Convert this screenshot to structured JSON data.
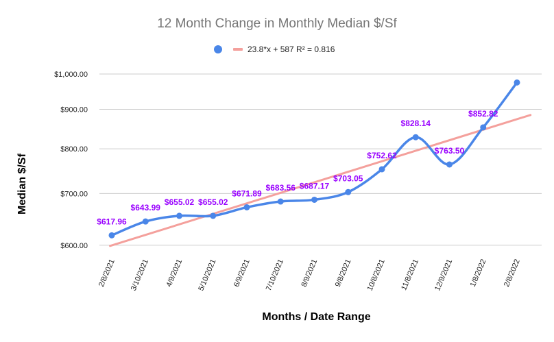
{
  "chart_data": {
    "type": "line",
    "title": "12 Month Change in Monthly Median $/Sf",
    "xlabel": "Months / Date Range",
    "ylabel": "Median $/Sf",
    "scale": "log",
    "ylim": [
      590,
      1000
    ],
    "y_ticks": [
      {
        "value": 600,
        "label": "$600.00"
      },
      {
        "value": 700,
        "label": "$700.00"
      },
      {
        "value": 800,
        "label": "$800.00"
      },
      {
        "value": 900,
        "label": "$900.00"
      },
      {
        "value": 1000,
        "label": "$1,000.00"
      }
    ],
    "categories": [
      "2/8/2021",
      "3/10/2021",
      "4/9/2021",
      "5/10/2021",
      "6/9/2021",
      "7/10/2021",
      "8/9/2021",
      "9/8/2021",
      "10/8/2021",
      "11/8/2021",
      "12/9/2021",
      "1/8/2022",
      "2/8/2022"
    ],
    "values": [
      617.96,
      643.99,
      655.02,
      655.02,
      671.89,
      683.56,
      687.17,
      703.05,
      752.62,
      828.14,
      763.5,
      852.82,
      975
    ],
    "data_labels": [
      "$617.96",
      "$643.99",
      "$655.02",
      "$655.02",
      "$671.89",
      "$683.56",
      "$687.17",
      "$703.05",
      "$752.62",
      "$828.14",
      "$763.50",
      "$852.82",
      ""
    ],
    "colors": {
      "series": "#4a86e8",
      "trendline": "#f4a09c",
      "data_labels": "#9900ff",
      "grid": "#cccccc"
    },
    "grid": true,
    "legend_position": "top",
    "trendline": {
      "type": "linear",
      "slope": 23.8,
      "intercept": 587,
      "r2": 0.816,
      "label": "23.8*x + 587 R² = 0.816"
    }
  }
}
